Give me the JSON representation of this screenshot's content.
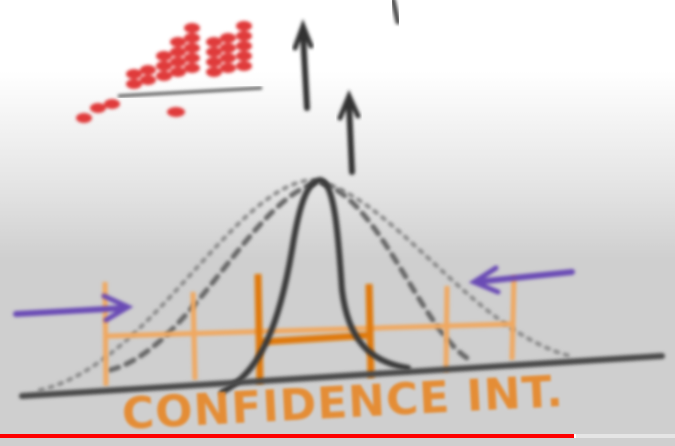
{
  "caption": "CONFIDENCE INT.",
  "colors": {
    "bell_curve": "#3a3a3a",
    "center_line": "#e87a86",
    "interval_inner": "#e07a10",
    "interval_outer": "#f0a860",
    "arrow": "#6a4bb5",
    "histogram_dots": "#e03a3a",
    "progress": "#ff0000"
  },
  "video_progress": {
    "played_fraction": 0.85
  }
}
